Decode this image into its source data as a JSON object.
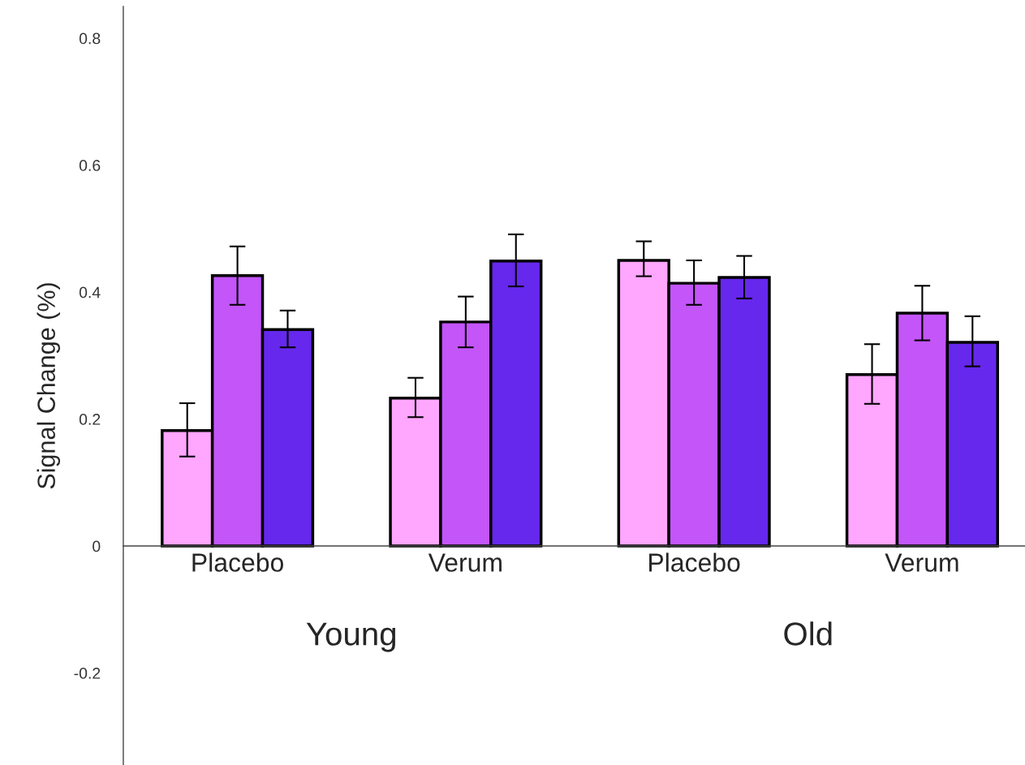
{
  "chart_data": {
    "type": "bar",
    "ylabel": "Signal Change (%)",
    "categories": [
      "Placebo",
      "Verum",
      "Placebo",
      "Verum"
    ],
    "series": [
      {
        "color": "#ffa6ff",
        "values": [
          0.182,
          0.233,
          0.45,
          0.27
        ],
        "errors": [
          [
            0.141,
            0.225
          ],
          [
            0.203,
            0.265
          ],
          [
            0.425,
            0.48
          ],
          [
            0.224,
            0.318
          ]
        ]
      },
      {
        "color": "#c355f9",
        "values": [
          0.426,
          0.353,
          0.414,
          0.367
        ],
        "errors": [
          [
            0.38,
            0.472
          ],
          [
            0.313,
            0.393
          ],
          [
            0.38,
            0.45
          ],
          [
            0.324,
            0.41
          ]
        ]
      },
      {
        "color": "#6628ec",
        "values": [
          0.341,
          0.449,
          0.423,
          0.321
        ],
        "errors": [
          [
            0.313,
            0.371
          ],
          [
            0.409,
            0.491
          ],
          [
            0.39,
            0.457
          ],
          [
            0.283,
            0.362
          ]
        ]
      }
    ],
    "ylim": [
      -0.345,
      0.85
    ],
    "yticks": [
      -0.2,
      0,
      0.2,
      0.4,
      0.6,
      0.8
    ],
    "annotations": [
      "Young",
      "Old"
    ],
    "grid": false,
    "legend": false
  }
}
